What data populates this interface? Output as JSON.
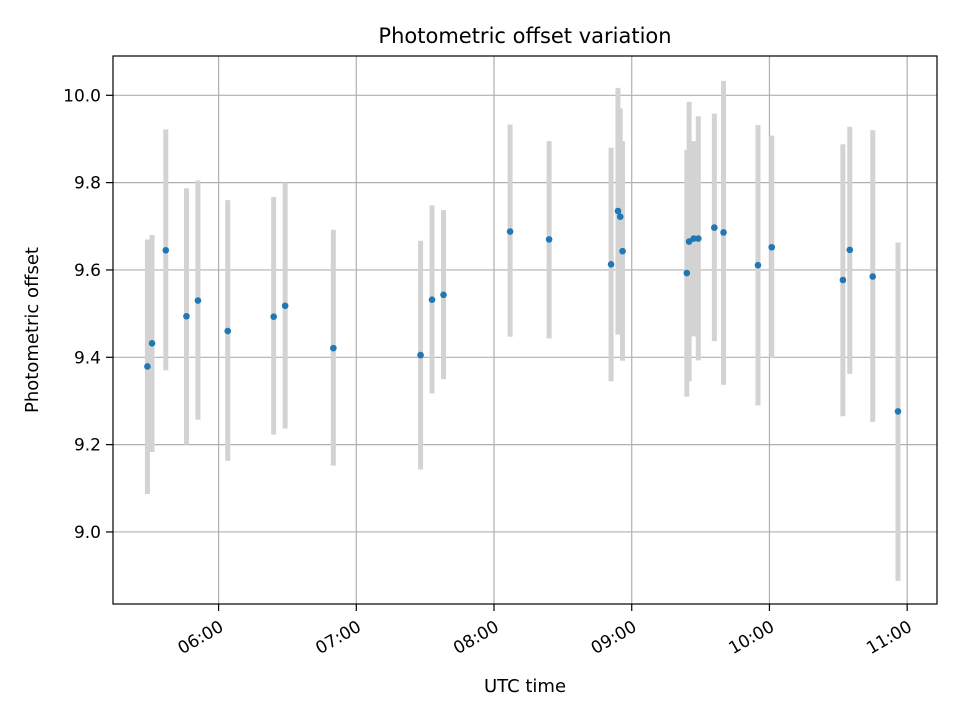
{
  "chart_data": {
    "type": "scatter",
    "title": "Photometric offset variation",
    "xlabel": "UTC time",
    "ylabel": "Photometric offset",
    "xlim": [
      "05:14",
      "11:13"
    ],
    "ylim": [
      8.835,
      10.09
    ],
    "x_ticks": [
      "06:00",
      "07:00",
      "08:00",
      "09:00",
      "10:00",
      "11:00"
    ],
    "y_ticks": [
      "9.0",
      "9.2",
      "9.4",
      "9.6",
      "9.8",
      "10.0"
    ],
    "grid": true,
    "colors": {
      "point": "#1f77b4",
      "error_bar": "#d3d3d3",
      "grid": "#b0b0b0"
    },
    "points": [
      {
        "time": "05:29",
        "y": 9.379,
        "err_low": 9.087,
        "err_high": 9.67
      },
      {
        "time": "05:31",
        "y": 9.432,
        "err_low": 9.183,
        "err_high": 9.68
      },
      {
        "time": "05:37",
        "y": 9.645,
        "err_low": 9.37,
        "err_high": 9.922
      },
      {
        "time": "05:46",
        "y": 9.494,
        "err_low": 9.2,
        "err_high": 9.787
      },
      {
        "time": "05:51",
        "y": 9.53,
        "err_low": 9.257,
        "err_high": 9.805
      },
      {
        "time": "06:04",
        "y": 9.46,
        "err_low": 9.163,
        "err_high": 9.76
      },
      {
        "time": "06:24",
        "y": 9.493,
        "err_low": 9.223,
        "err_high": 9.767
      },
      {
        "time": "06:29",
        "y": 9.518,
        "err_low": 9.237,
        "err_high": 9.8
      },
      {
        "time": "06:50",
        "y": 9.421,
        "err_low": 9.152,
        "err_high": 9.692
      },
      {
        "time": "07:28",
        "y": 9.405,
        "err_low": 9.143,
        "err_high": 9.667
      },
      {
        "time": "07:33",
        "y": 9.532,
        "err_low": 9.317,
        "err_high": 9.748
      },
      {
        "time": "07:38",
        "y": 9.543,
        "err_low": 9.35,
        "err_high": 9.737
      },
      {
        "time": "08:07",
        "y": 9.688,
        "err_low": 9.447,
        "err_high": 9.933
      },
      {
        "time": "08:24",
        "y": 9.67,
        "err_low": 9.443,
        "err_high": 9.895
      },
      {
        "time": "08:51",
        "y": 9.613,
        "err_low": 9.345,
        "err_high": 9.88
      },
      {
        "time": "08:54",
        "y": 9.735,
        "err_low": 9.452,
        "err_high": 10.017
      },
      {
        "time": "08:55",
        "y": 9.722,
        "err_low": 9.473,
        "err_high": 9.97
      },
      {
        "time": "08:56",
        "y": 9.643,
        "err_low": 9.392,
        "err_high": 9.895
      },
      {
        "time": "09:24",
        "y": 9.593,
        "err_low": 9.31,
        "err_high": 9.875
      },
      {
        "time": "09:25",
        "y": 9.665,
        "err_low": 9.345,
        "err_high": 9.985
      },
      {
        "time": "09:27",
        "y": 9.672,
        "err_low": 9.448,
        "err_high": 9.895
      },
      {
        "time": "09:29",
        "y": 9.672,
        "err_low": 9.393,
        "err_high": 9.952
      },
      {
        "time": "09:36",
        "y": 9.697,
        "err_low": 9.437,
        "err_high": 9.958
      },
      {
        "time": "09:40",
        "y": 9.686,
        "err_low": 9.337,
        "err_high": 10.033
      },
      {
        "time": "09:55",
        "y": 9.611,
        "err_low": 9.29,
        "err_high": 9.932
      },
      {
        "time": "10:01",
        "y": 9.652,
        "err_low": 9.398,
        "err_high": 9.908
      },
      {
        "time": "10:32",
        "y": 9.577,
        "err_low": 9.265,
        "err_high": 9.888
      },
      {
        "time": "10:35",
        "y": 9.646,
        "err_low": 9.362,
        "err_high": 9.928
      },
      {
        "time": "10:45",
        "y": 9.585,
        "err_low": 9.252,
        "err_high": 9.92
      },
      {
        "time": "10:56",
        "y": 9.276,
        "err_low": 8.888,
        "err_high": 9.663
      }
    ]
  }
}
